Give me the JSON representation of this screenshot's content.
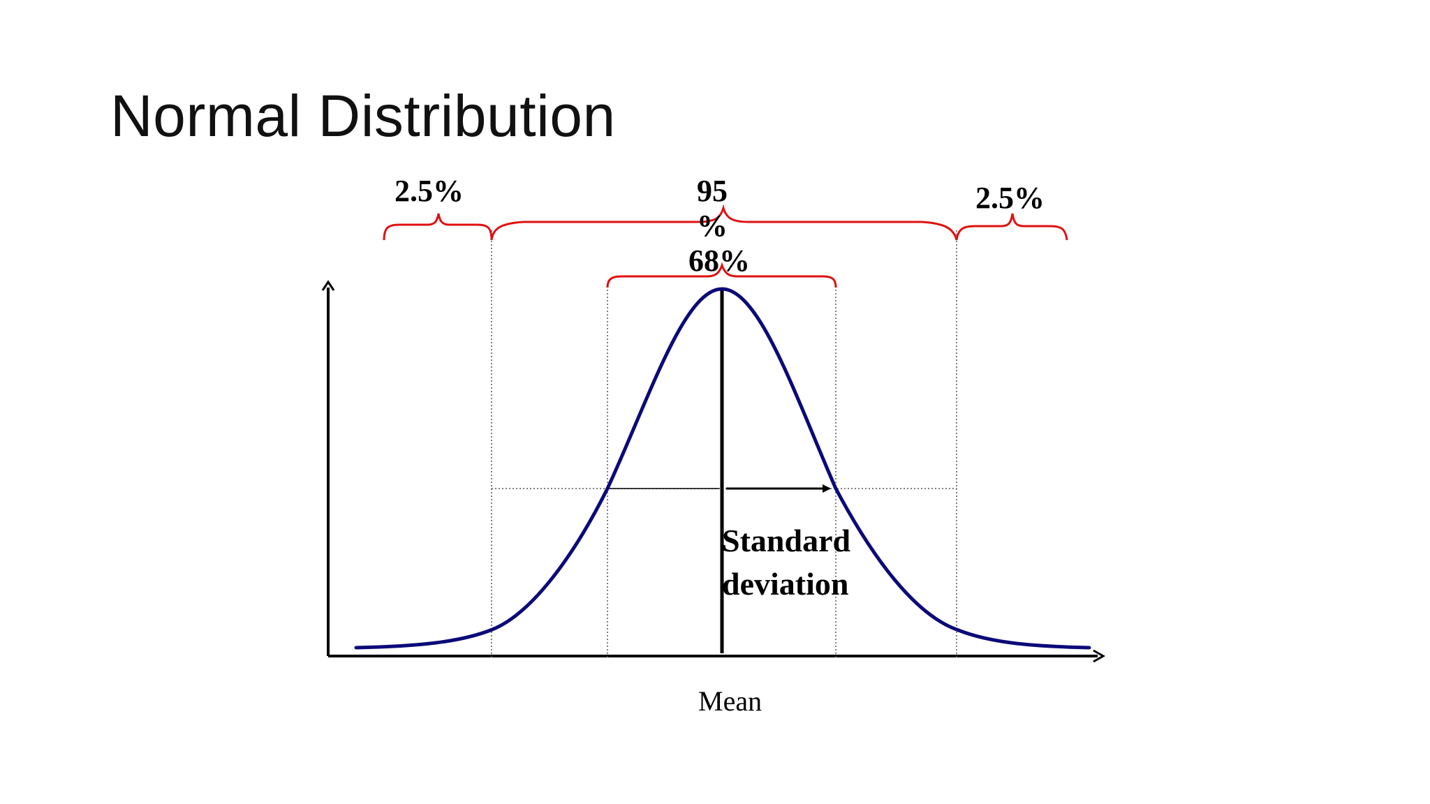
{
  "slide": {
    "title": "Normal Distribution"
  },
  "diagram": {
    "labels": {
      "left_tail": "2.5%",
      "middle_95_line1": "95",
      "middle_95_line2": "%",
      "middle_68": "68%",
      "right_tail": "2.5%",
      "std_line1": "Standard",
      "std_line2": "deviation",
      "x_axis": "Mean"
    },
    "colors": {
      "curve": "#0a0a78",
      "brace": "#e01010",
      "axis": "#000000",
      "guide": "#555555"
    }
  }
}
